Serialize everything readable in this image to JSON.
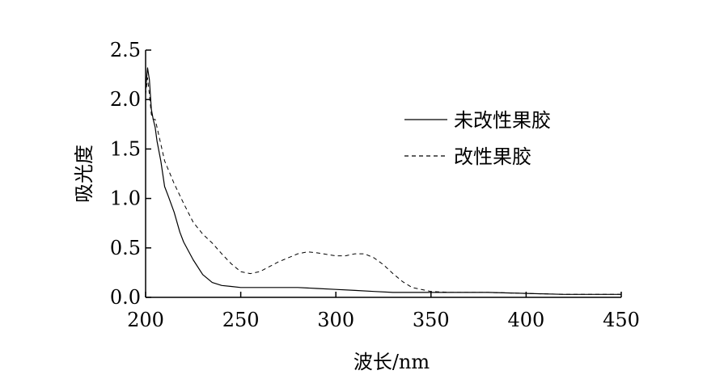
{
  "chart_data": {
    "type": "line",
    "title": "",
    "xlabel": "波长/nm",
    "ylabel": "吸光度",
    "xlim": [
      200,
      450
    ],
    "ylim": [
      0,
      2.5
    ],
    "x_ticks": [
      "200",
      "250",
      "300",
      "350",
      "400",
      "450"
    ],
    "y_ticks": [
      "0.0",
      "0.5",
      "1.0",
      "1.5",
      "2.0",
      "2.5"
    ],
    "grid": false,
    "legend_position": "top-right",
    "series": [
      {
        "name": "未改性果胶",
        "style": "solid",
        "x": [
          200,
          201,
          202,
          203,
          204,
          205,
          206,
          208,
          210,
          212,
          215,
          218,
          220,
          225,
          230,
          235,
          240,
          245,
          250,
          260,
          270,
          280,
          290,
          300,
          310,
          320,
          330,
          340,
          350,
          360,
          370,
          380,
          400,
          420,
          450
        ],
        "y": [
          2.1,
          2.32,
          2.2,
          1.9,
          1.8,
          1.72,
          1.58,
          1.38,
          1.12,
          1.02,
          0.86,
          0.66,
          0.56,
          0.38,
          0.23,
          0.15,
          0.12,
          0.11,
          0.1,
          0.1,
          0.1,
          0.1,
          0.09,
          0.08,
          0.07,
          0.06,
          0.05,
          0.05,
          0.05,
          0.05,
          0.05,
          0.05,
          0.04,
          0.03,
          0.03
        ]
      },
      {
        "name": "改性果胶",
        "style": "dashed",
        "x": [
          200,
          201,
          202,
          203,
          204,
          205,
          206,
          208,
          210,
          215,
          220,
          225,
          230,
          235,
          240,
          245,
          250,
          255,
          260,
          270,
          280,
          285,
          290,
          300,
          305,
          310,
          315,
          320,
          325,
          330,
          335,
          340,
          350,
          360,
          380,
          400,
          420,
          450
        ],
        "y": [
          2.05,
          2.22,
          2.05,
          1.85,
          1.8,
          1.8,
          1.72,
          1.55,
          1.38,
          1.15,
          0.95,
          0.76,
          0.64,
          0.55,
          0.44,
          0.34,
          0.26,
          0.24,
          0.26,
          0.36,
          0.44,
          0.46,
          0.45,
          0.42,
          0.42,
          0.44,
          0.44,
          0.4,
          0.33,
          0.24,
          0.16,
          0.1,
          0.06,
          0.05,
          0.05,
          0.04,
          0.03,
          0.03
        ]
      }
    ]
  }
}
